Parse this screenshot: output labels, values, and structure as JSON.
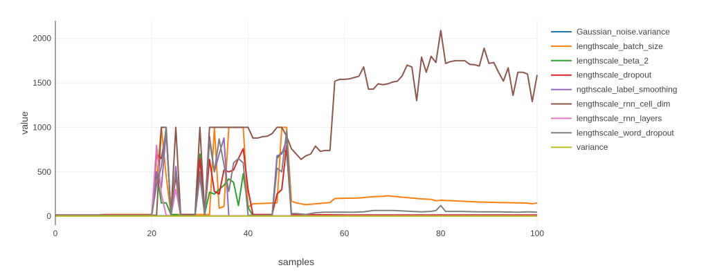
{
  "chart_data": {
    "type": "line",
    "xlabel": "samples",
    "ylabel": "value",
    "xlim": [
      0,
      100
    ],
    "ylim": [
      -100,
      2200
    ],
    "xticks": [
      0,
      20,
      40,
      60,
      80,
      100
    ],
    "yticks": [
      0,
      500,
      1000,
      1500,
      2000
    ],
    "grid": true,
    "legend": "right",
    "series": [
      {
        "name": "Gaussian_noise.variance",
        "color": "#1f77b4",
        "x": [
          0,
          20,
          40,
          60,
          80,
          100
        ],
        "y": [
          5,
          5,
          5,
          5,
          5,
          5
        ]
      },
      {
        "name": "lengthscale_batch_size",
        "color": "#ff7f0e",
        "x": [
          0,
          9,
          10,
          19,
          20,
          21,
          22,
          23,
          24,
          25,
          26,
          29,
          30,
          31,
          32,
          33,
          34,
          35,
          36,
          37,
          38,
          39,
          40,
          41,
          46,
          47,
          48,
          49,
          50,
          51,
          52,
          57,
          58,
          63,
          64,
          66,
          68,
          69,
          70,
          72,
          74,
          76,
          78,
          79,
          80,
          84,
          88,
          92,
          96,
          98,
          99,
          100
        ],
        "y": [
          10,
          10,
          20,
          20,
          20,
          400,
          1000,
          450,
          20,
          20,
          20,
          20,
          20,
          20,
          20,
          1000,
          90,
          110,
          1000,
          1000,
          1000,
          1000,
          100,
          140,
          150,
          1000,
          1000,
          170,
          150,
          140,
          130,
          155,
          200,
          205,
          210,
          220,
          225,
          230,
          225,
          215,
          205,
          195,
          190,
          175,
          180,
          170,
          160,
          155,
          150,
          148,
          140,
          150
        ]
      },
      {
        "name": "lengthscale_beta_2",
        "color": "#2ca02c",
        "x": [
          0,
          20,
          21,
          22,
          23,
          24,
          25,
          26,
          29,
          30,
          31,
          32,
          33,
          34,
          35,
          36,
          37,
          38,
          39,
          40,
          41,
          45,
          46,
          47,
          48,
          49,
          60,
          80,
          100
        ],
        "y": [
          5,
          5,
          500,
          150,
          150,
          20,
          20,
          5,
          5,
          700,
          30,
          270,
          250,
          300,
          350,
          420,
          380,
          120,
          480,
          100,
          5,
          5,
          650,
          720,
          740,
          5,
          5,
          5,
          5
        ]
      },
      {
        "name": "lengthscale_dropout",
        "color": "#d62728",
        "x": [
          0,
          20,
          21,
          22,
          23,
          24,
          25,
          26,
          29,
          30,
          31,
          32,
          33,
          34,
          35,
          36,
          37,
          38,
          39,
          40,
          41,
          45,
          46,
          47,
          48,
          49,
          60,
          80,
          100
        ],
        "y": [
          15,
          15,
          700,
          650,
          950,
          30,
          450,
          20,
          20,
          650,
          30,
          640,
          280,
          250,
          520,
          500,
          520,
          650,
          760,
          300,
          20,
          20,
          250,
          300,
          800,
          20,
          15,
          15,
          15
        ]
      },
      {
        "name": "ngthscale_label_smoothing",
        "color": "#9467bd",
        "x": [
          0,
          20,
          21,
          22,
          23,
          24,
          25,
          26,
          29,
          30,
          31,
          32,
          33,
          34,
          35,
          36,
          37,
          38,
          39,
          40,
          41,
          45,
          46,
          47,
          48,
          49,
          60,
          80,
          100
        ],
        "y": [
          5,
          5,
          500,
          320,
          950,
          5,
          560,
          5,
          5,
          450,
          5,
          900,
          500,
          700,
          880,
          5,
          5,
          5,
          5,
          5,
          5,
          5,
          680,
          700,
          860,
          5,
          5,
          5,
          5
        ]
      },
      {
        "name": "lengthscale_rnn_cell_dim",
        "color": "#8c564b",
        "x": [
          0,
          20,
          21,
          22,
          23,
          24,
          25,
          26,
          29,
          30,
          31,
          32,
          33,
          34,
          35,
          36,
          37,
          38,
          39,
          40,
          41,
          42,
          43,
          44,
          45,
          46,
          47,
          48,
          49,
          50,
          51,
          52,
          53,
          54,
          55,
          56,
          57,
          58,
          59,
          60,
          61,
          62,
          63,
          64,
          65,
          66,
          67,
          68,
          69,
          70,
          71,
          72,
          73,
          74,
          75,
          76,
          77,
          78,
          79,
          80,
          81,
          82,
          83,
          84,
          85,
          86,
          87,
          88,
          89,
          90,
          91,
          92,
          93,
          94,
          95,
          96,
          97,
          98,
          99,
          100
        ],
        "y": [
          10,
          10,
          10,
          1000,
          1000,
          20,
          1000,
          20,
          20,
          1000,
          20,
          1000,
          1000,
          1000,
          1000,
          1000,
          1000,
          1000,
          1000,
          1000,
          880,
          880,
          895,
          900,
          930,
          1000,
          1000,
          900,
          760,
          700,
          640,
          680,
          700,
          790,
          730,
          740,
          740,
          1520,
          1540,
          1540,
          1545,
          1560,
          1575,
          1680,
          1430,
          1430,
          1490,
          1480,
          1490,
          1510,
          1520,
          1580,
          1700,
          1680,
          1300,
          1790,
          1620,
          1800,
          1730,
          2090,
          1720,
          1740,
          1750,
          1750,
          1750,
          1710,
          1705,
          1690,
          1890,
          1720,
          1730,
          1620,
          1520,
          1670,
          1360,
          1620,
          1620,
          1600,
          1290,
          1590
        ]
      },
      {
        "name": "lengthscale_rnn_layers",
        "color": "#e377c2",
        "x": [
          0,
          20,
          21,
          22,
          23,
          24,
          25,
          26,
          60,
          80,
          100
        ],
        "y": [
          5,
          5,
          800,
          250,
          10,
          5,
          300,
          5,
          5,
          5,
          5
        ]
      },
      {
        "name": "lengthscale_word_dropout",
        "color": "#7f7f7f",
        "x": [
          0,
          20,
          21,
          22,
          23,
          24,
          25,
          26,
          29,
          30,
          31,
          32,
          33,
          34,
          35,
          36,
          37,
          38,
          39,
          40,
          41,
          45,
          46,
          47,
          48,
          49,
          50,
          52,
          54,
          56,
          58,
          60,
          62,
          64,
          66,
          68,
          70,
          72,
          74,
          76,
          78,
          79,
          80,
          81,
          84,
          88,
          92,
          96,
          98,
          100
        ],
        "y": [
          10,
          10,
          350,
          560,
          1000,
          5,
          500,
          5,
          5,
          500,
          5,
          850,
          500,
          870,
          580,
          280,
          600,
          650,
          600,
          10,
          10,
          10,
          540,
          500,
          960,
          30,
          30,
          20,
          40,
          45,
          45,
          45,
          45,
          50,
          65,
          65,
          65,
          60,
          55,
          50,
          55,
          65,
          120,
          55,
          55,
          50,
          50,
          45,
          50,
          45
        ]
      },
      {
        "name": "variance",
        "color": "#bcbd22",
        "x": [
          0,
          20,
          40,
          60,
          80,
          100
        ],
        "y": [
          2,
          2,
          2,
          2,
          2,
          2
        ]
      }
    ]
  }
}
